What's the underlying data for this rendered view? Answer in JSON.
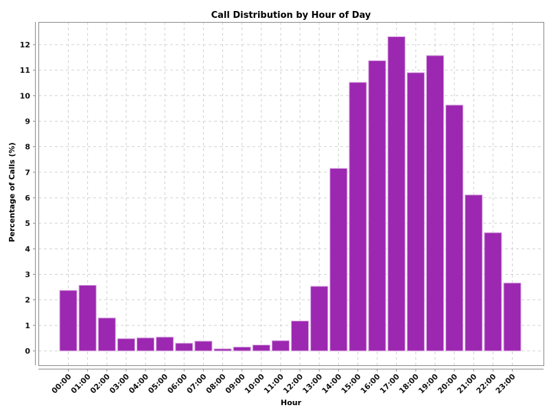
{
  "chart_data": {
    "type": "bar",
    "title": "Call Distribution by Hour of Day",
    "xlabel": "Hour",
    "ylabel": "Percentage of Calls (%)",
    "categories": [
      "00:00",
      "01:00",
      "02:00",
      "03:00",
      "04:00",
      "05:00",
      "06:00",
      "07:00",
      "08:00",
      "09:00",
      "10:00",
      "11:00",
      "12:00",
      "13:00",
      "14:00",
      "15:00",
      "16:00",
      "17:00",
      "18:00",
      "19:00",
      "20:00",
      "21:00",
      "22:00",
      "23:00"
    ],
    "values": [
      2.37,
      2.57,
      1.29,
      0.48,
      0.51,
      0.54,
      0.3,
      0.38,
      0.08,
      0.15,
      0.23,
      0.4,
      1.17,
      2.53,
      7.15,
      10.52,
      11.37,
      12.31,
      10.9,
      11.57,
      9.63,
      6.11,
      4.63,
      2.66
    ],
    "ylim": [
      -0.55,
      12.9
    ],
    "yticks": [
      0,
      1,
      2,
      3,
      4,
      5,
      6,
      7,
      8,
      9,
      10,
      11,
      12
    ],
    "grid": true,
    "legend": false,
    "bar_color": "#9c27b0",
    "bar_edge_color": "#d7a8e0",
    "grid_color": "#d0d0d0"
  }
}
